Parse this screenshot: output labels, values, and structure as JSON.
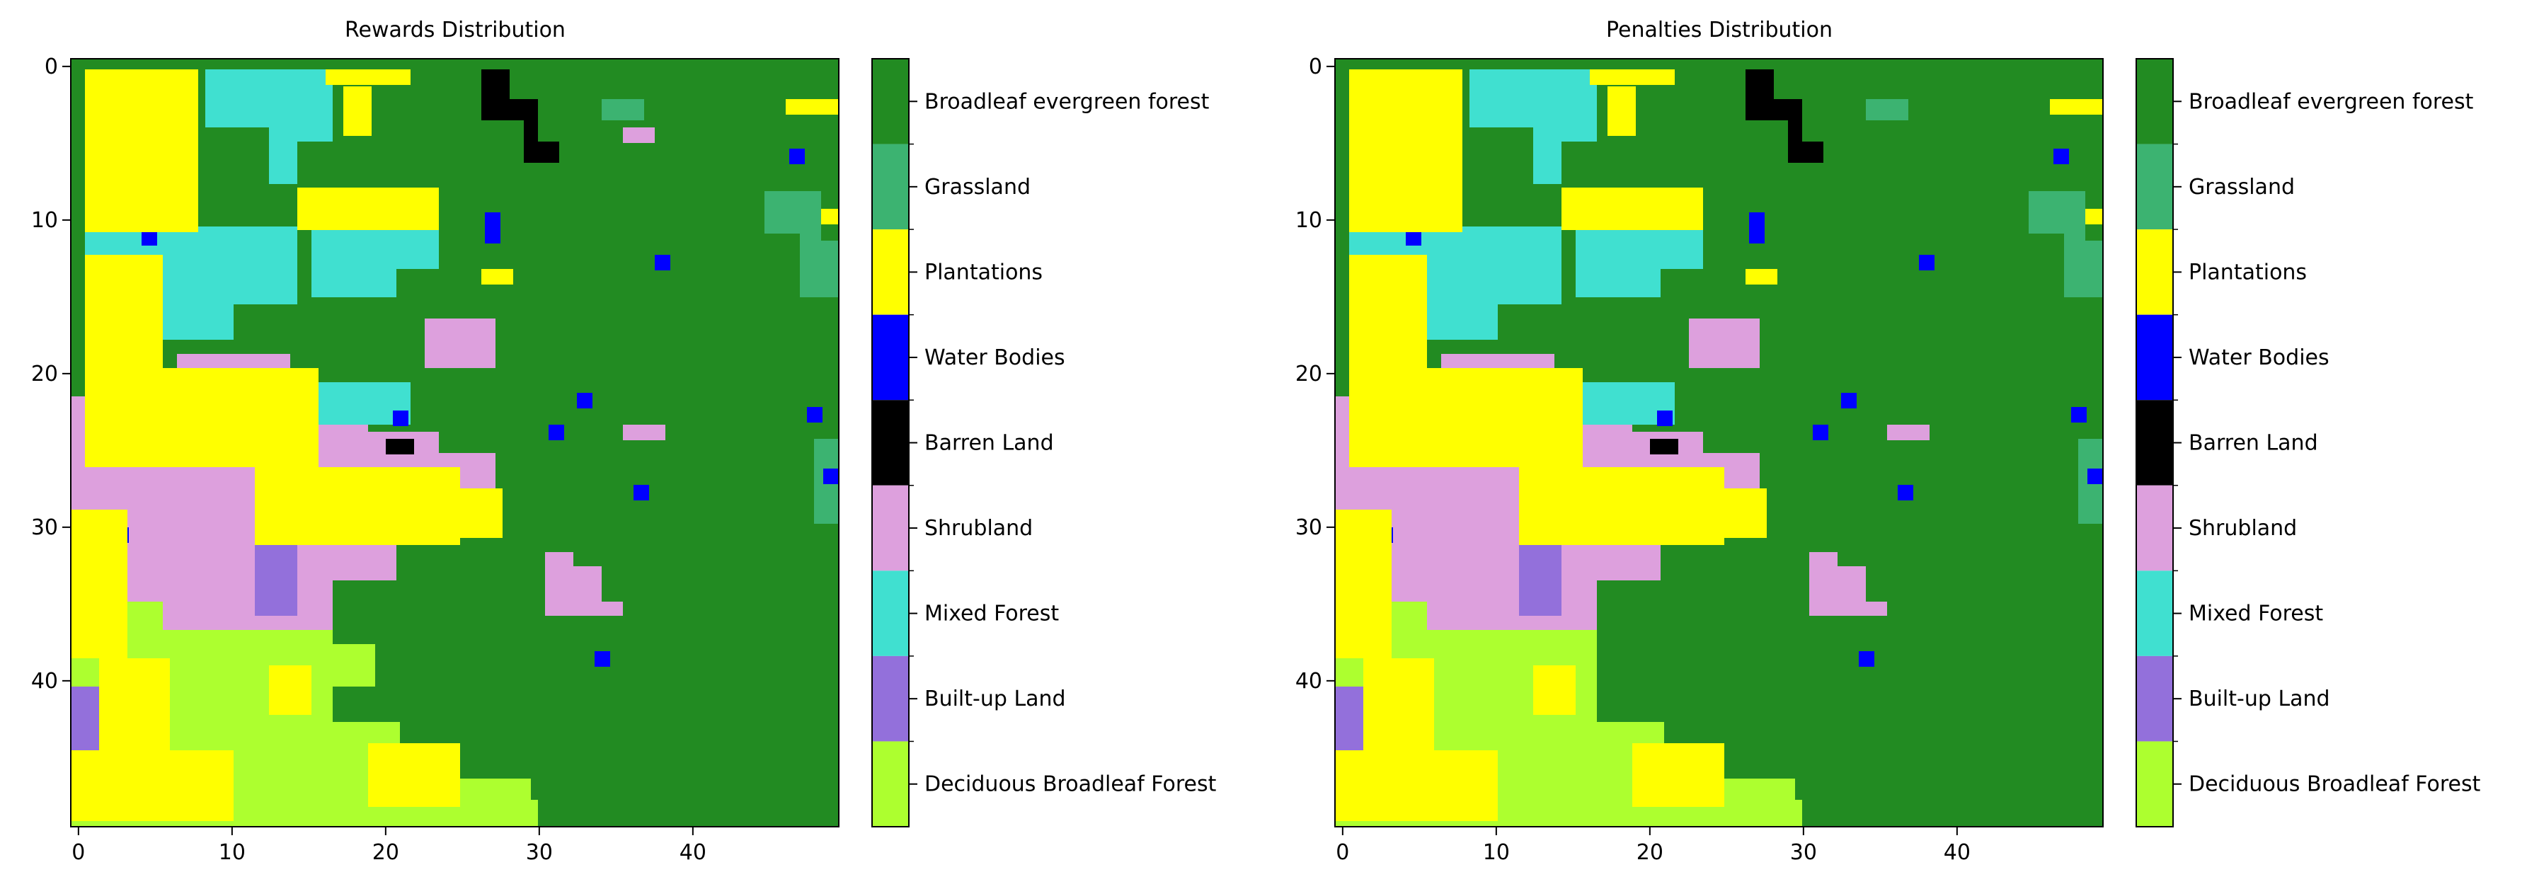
{
  "figure": {
    "background": "#ffffff"
  },
  "legend_classes": [
    {
      "label": "Broadleaf evergreen forest",
      "color": "#228B22"
    },
    {
      "label": "Grassland",
      "color": "#3CB371"
    },
    {
      "label": "Plantations",
      "color": "#FFFF00"
    },
    {
      "label": "Water Bodies",
      "color": "#0000FF"
    },
    {
      "label": "Barren Land",
      "color": "#000000"
    },
    {
      "label": "Shrubland",
      "color": "#DDA0DD"
    },
    {
      "label": "Mixed Forest",
      "color": "#40E0D0"
    },
    {
      "label": "Built-up Land",
      "color": "#9370DB"
    },
    {
      "label": "Deciduous Broadleaf Forest",
      "color": "#ADFF2F"
    }
  ],
  "chart_data": [
    {
      "type": "heatmap",
      "title": "Rewards Distribution",
      "xlabel": "",
      "ylabel": "",
      "grid_size": [
        50,
        50
      ],
      "xlim": [
        -0.5,
        49.5
      ],
      "ylim": [
        49.5,
        -0.5
      ],
      "xticks": [
        0,
        10,
        20,
        30,
        40
      ],
      "yticks": [
        0,
        10,
        20,
        30,
        40
      ],
      "grid": false,
      "colorbar": "right",
      "cell_annotations": "numeric values printed on Plantations (yellow) cells; too small to transcribe reliably",
      "colorbar_labels": [
        "Broadleaf evergreen forest",
        "Grassland",
        "Plantations",
        "Water Bodies",
        "Barren Land",
        "Shrubland",
        "Mixed Forest",
        "Built-up Land",
        "Deciduous Broadleaf Forest"
      ]
    },
    {
      "type": "heatmap",
      "title": "Penalties Distribution",
      "xlabel": "",
      "ylabel": "",
      "grid_size": [
        50,
        50
      ],
      "xlim": [
        -0.5,
        49.5
      ],
      "ylim": [
        49.5,
        -0.5
      ],
      "xticks": [
        0,
        10,
        20,
        30,
        40
      ],
      "yticks": [
        0,
        10,
        20,
        30,
        40
      ],
      "grid": false,
      "colorbar": "right",
      "cell_annotations": "negative numeric values printed on Plantations (yellow) cells; too small to transcribe reliably",
      "colorbar_labels": [
        "Broadleaf evergreen forest",
        "Grassland",
        "Plantations",
        "Water Bodies",
        "Barren Land",
        "Shrubland",
        "Mixed Forest",
        "Built-up Land",
        "Deciduous Broadleaf Forest"
      ]
    }
  ]
}
